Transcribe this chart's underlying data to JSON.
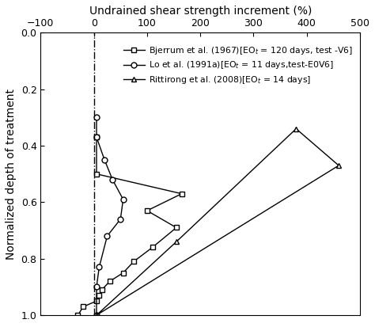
{
  "title": "Undrained shear strength increment (%)",
  "ylabel": "Normalized depth of treatment",
  "xlim": [
    -100,
    500
  ],
  "ylim": [
    1.0,
    0.0
  ],
  "xticks": [
    -100,
    0,
    100,
    200,
    300,
    400,
    500
  ],
  "yticks": [
    0.0,
    0.2,
    0.4,
    0.6,
    0.8,
    1.0
  ],
  "vline_x": 0,
  "series": [
    {
      "label": "Bjerrum et al. (1967)[EO$_t$ = 120 days, test -V6]",
      "marker": "s",
      "x": [
        -30,
        -20,
        5,
        10,
        15,
        30,
        55,
        75,
        110,
        155,
        100,
        165,
        5,
        5
      ],
      "y": [
        1.0,
        0.97,
        0.95,
        0.93,
        0.91,
        0.88,
        0.85,
        0.81,
        0.76,
        0.69,
        0.63,
        0.57,
        0.5,
        0.37
      ]
    },
    {
      "label": "Lo et al. (1991a)[EO$_t$ = 11 days,test-E0V6]",
      "marker": "o",
      "x": [
        5,
        5,
        10,
        25,
        50,
        55,
        35,
        20,
        5,
        5
      ],
      "y": [
        1.0,
        0.9,
        0.83,
        0.72,
        0.66,
        0.59,
        0.52,
        0.45,
        0.37,
        0.3
      ]
    },
    {
      "label": "Rittirong et al. (2008)[EO$_t$ = 14 days]",
      "marker": "^",
      "x": [
        5,
        155,
        380,
        460,
        5
      ],
      "y": [
        1.0,
        0.74,
        0.34,
        0.47,
        1.0
      ]
    }
  ]
}
